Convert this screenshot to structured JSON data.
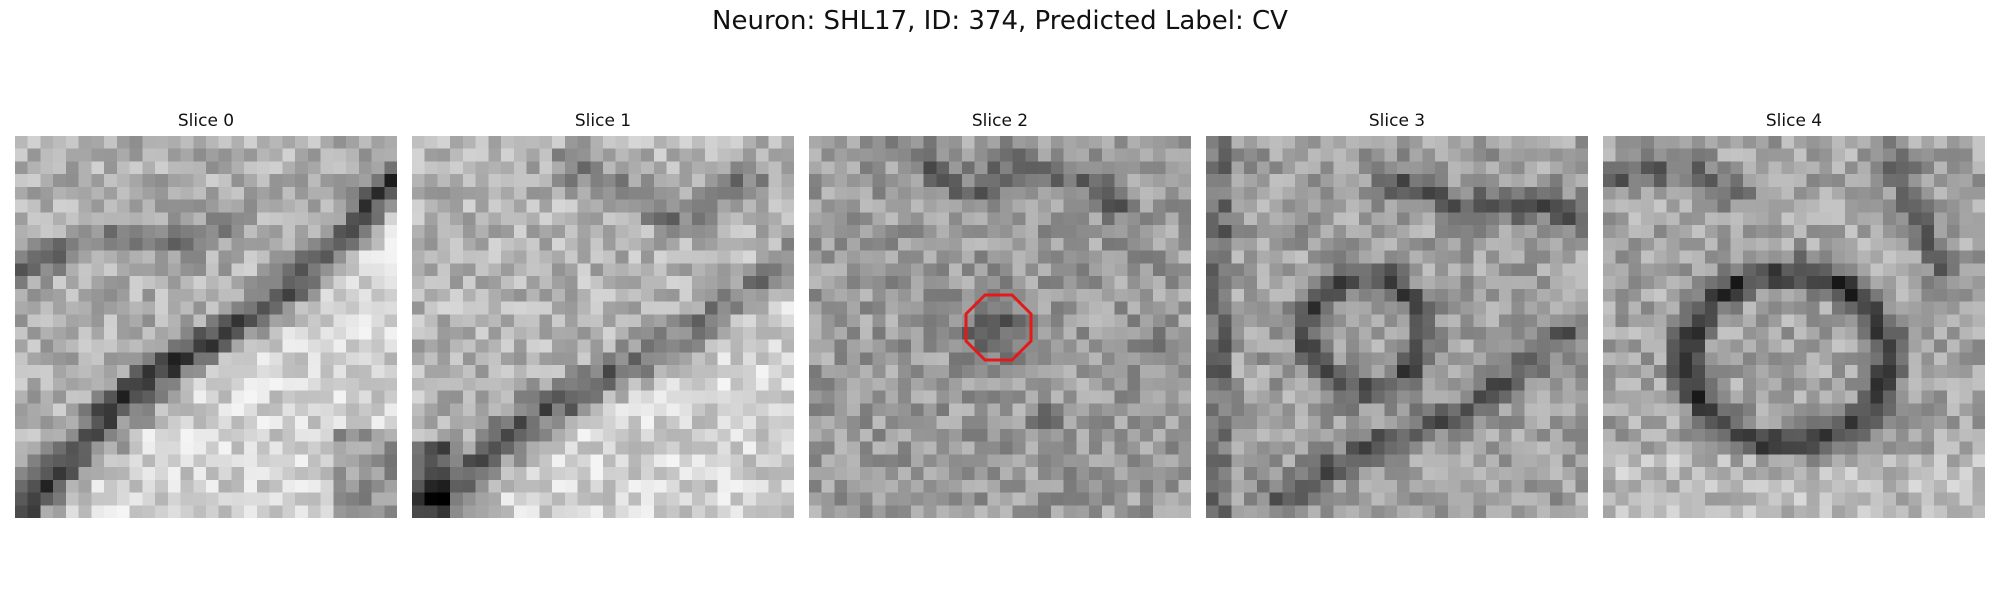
{
  "figure": {
    "title": "Neuron: SHL17, ID: 374, Predicted Label: CV"
  },
  "slices": [
    {
      "label": "Slice 0",
      "texture": "membrane-diagonal"
    },
    {
      "label": "Slice 1",
      "texture": "membrane-diagonal-soft"
    },
    {
      "label": "Slice 2",
      "texture": "vesicle-center",
      "roi": true
    },
    {
      "label": "Slice 3",
      "texture": "ring"
    },
    {
      "label": "Slice 4",
      "texture": "ring-dark"
    }
  ],
  "roi": {
    "shape": "octagon",
    "color": "#e31a1c"
  }
}
